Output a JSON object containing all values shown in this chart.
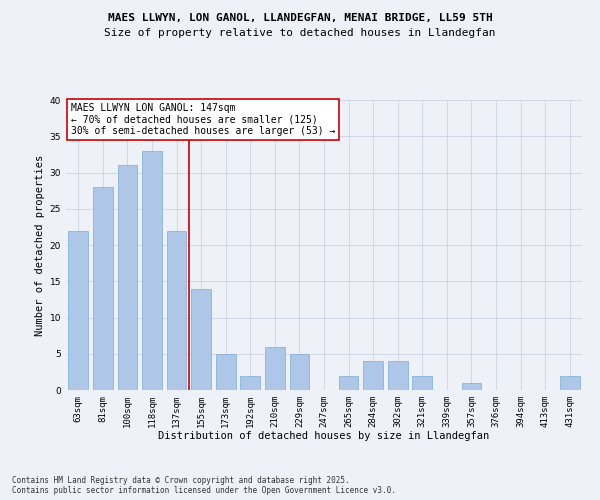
{
  "title1": "MAES LLWYN, LON GANOL, LLANDEGFAN, MENAI BRIDGE, LL59 5TH",
  "title2": "Size of property relative to detached houses in Llandegfan",
  "xlabel": "Distribution of detached houses by size in Llandegfan",
  "ylabel": "Number of detached properties",
  "categories": [
    "63sqm",
    "81sqm",
    "100sqm",
    "118sqm",
    "137sqm",
    "155sqm",
    "173sqm",
    "192sqm",
    "210sqm",
    "229sqm",
    "247sqm",
    "265sqm",
    "284sqm",
    "302sqm",
    "321sqm",
    "339sqm",
    "357sqm",
    "376sqm",
    "394sqm",
    "413sqm",
    "431sqm"
  ],
  "values": [
    22,
    28,
    31,
    33,
    22,
    14,
    5,
    2,
    6,
    5,
    0,
    2,
    4,
    4,
    2,
    0,
    1,
    0,
    0,
    0,
    2
  ],
  "bar_color": "#aec6e8",
  "bar_edge_color": "#7aaed6",
  "grid_color": "#d0d8e8",
  "background_color": "#eef2f8",
  "vline_x": 4.5,
  "vline_color": "#cc0000",
  "annotation_text": "MAES LLWYN LON GANOL: 147sqm\n← 70% of detached houses are smaller (125)\n30% of semi-detached houses are larger (53) →",
  "annotation_box_color": "#ffffff",
  "annotation_box_edge": "#cc0000",
  "ylim": [
    0,
    40
  ],
  "yticks": [
    0,
    5,
    10,
    15,
    20,
    25,
    30,
    35,
    40
  ],
  "footnote": "Contains HM Land Registry data © Crown copyright and database right 2025.\nContains public sector information licensed under the Open Government Licence v3.0.",
  "title1_fontsize": 8,
  "title2_fontsize": 8,
  "axis_label_fontsize": 7.5,
  "tick_fontsize": 6.5,
  "annotation_fontsize": 7,
  "footnote_fontsize": 5.5
}
